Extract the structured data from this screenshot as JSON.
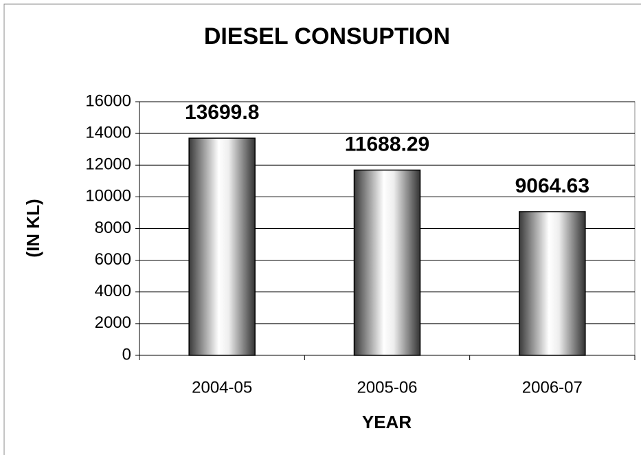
{
  "chart_data": {
    "type": "bar",
    "title": "DIESEL CONSUPTION",
    "x_label": "YEAR",
    "y_label": "(IN KL)",
    "categories": [
      "2004-05",
      "2005-06",
      "2006-07"
    ],
    "values": [
      13699.8,
      11688.29,
      9064.63
    ],
    "ylim": [
      0,
      16000
    ],
    "yticks": [
      0,
      2000,
      4000,
      6000,
      8000,
      10000,
      12000,
      14000,
      16000
    ],
    "grid": true
  }
}
